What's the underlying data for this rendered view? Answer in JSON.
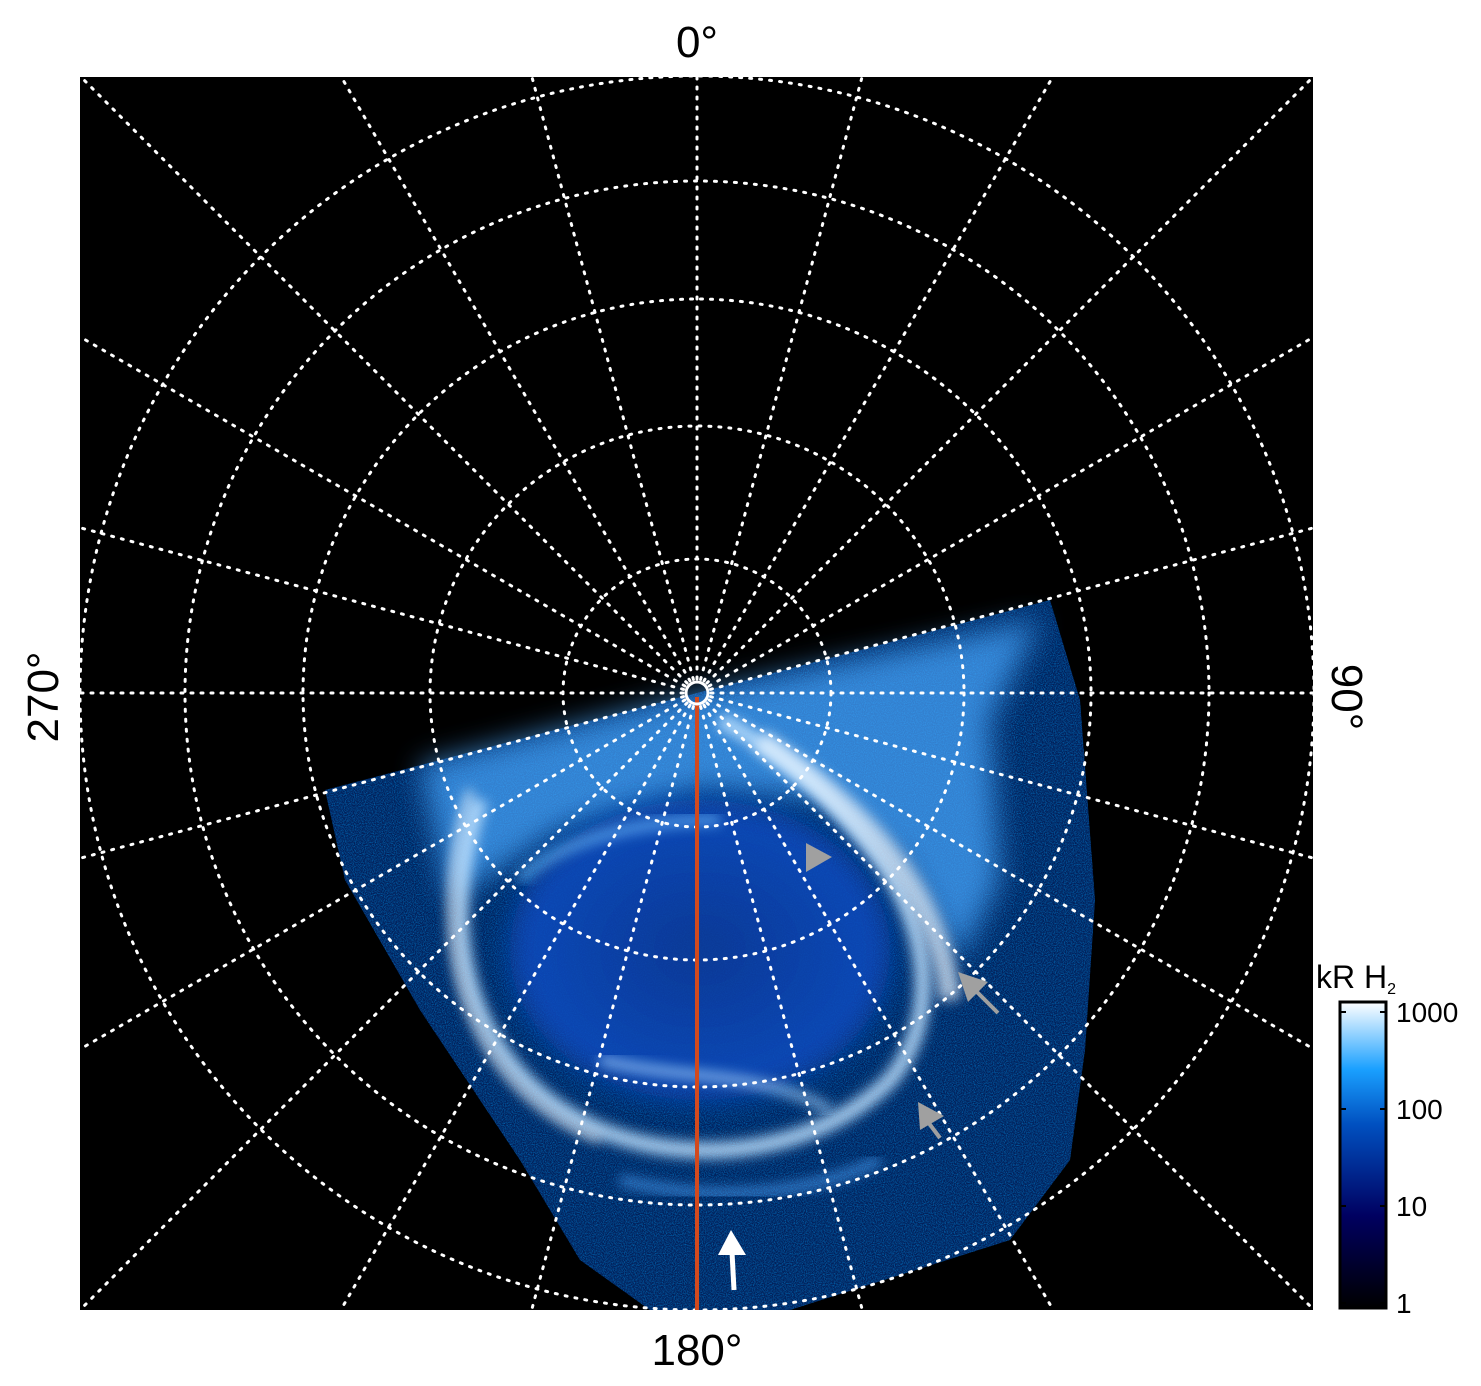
{
  "chart_data": {
    "type": "heatmap",
    "projection": "polar",
    "longitude_labels": {
      "top": "0°",
      "right": "90°",
      "bottom": "180°",
      "left": "270°"
    },
    "meridian_spacing_deg": 15,
    "latitude_circles": 5,
    "grid": true,
    "colorbar": {
      "label": "kR H",
      "label_subscript": "2",
      "scale": "log",
      "range": [
        1,
        1000
      ],
      "ticks": [
        "1",
        "10",
        "100",
        "1000"
      ],
      "colors": [
        "#000000",
        "#000060",
        "#0050c0",
        "#1aa0ff",
        "#ffffff"
      ]
    },
    "colors": {
      "central_meridian_line": "#d24a1e",
      "grid": "#ffffff",
      "background": "#000000",
      "arrow_gray": "#a0a0a0",
      "arrow_white": "#ffffff"
    }
  }
}
